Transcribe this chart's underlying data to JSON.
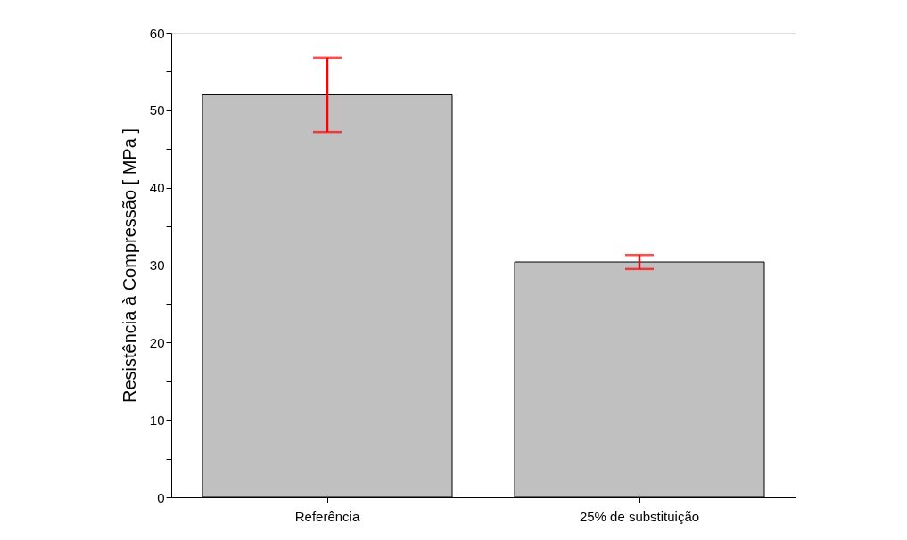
{
  "chart_data": {
    "type": "bar",
    "ylabel": "Resistência à Compressão [ MPa ]",
    "categories": [
      "Referência",
      "25% de substituição"
    ],
    "values": [
      52,
      30.4
    ],
    "errors": [
      4.8,
      0.9
    ],
    "color": "#c0c0c0",
    "ylim": [
      0,
      60
    ],
    "yticks": [
      0,
      {
        "value": 5,
        "label": null
      },
      10,
      {
        "value": 15,
        "label": null
      },
      20,
      {
        "value": 25,
        "label": null
      },
      30,
      {
        "value": 35,
        "label": null
      },
      40,
      {
        "value": 45,
        "label": null
      },
      50,
      {
        "value": 55,
        "label": null
      },
      60
    ],
    "grid": false
  }
}
